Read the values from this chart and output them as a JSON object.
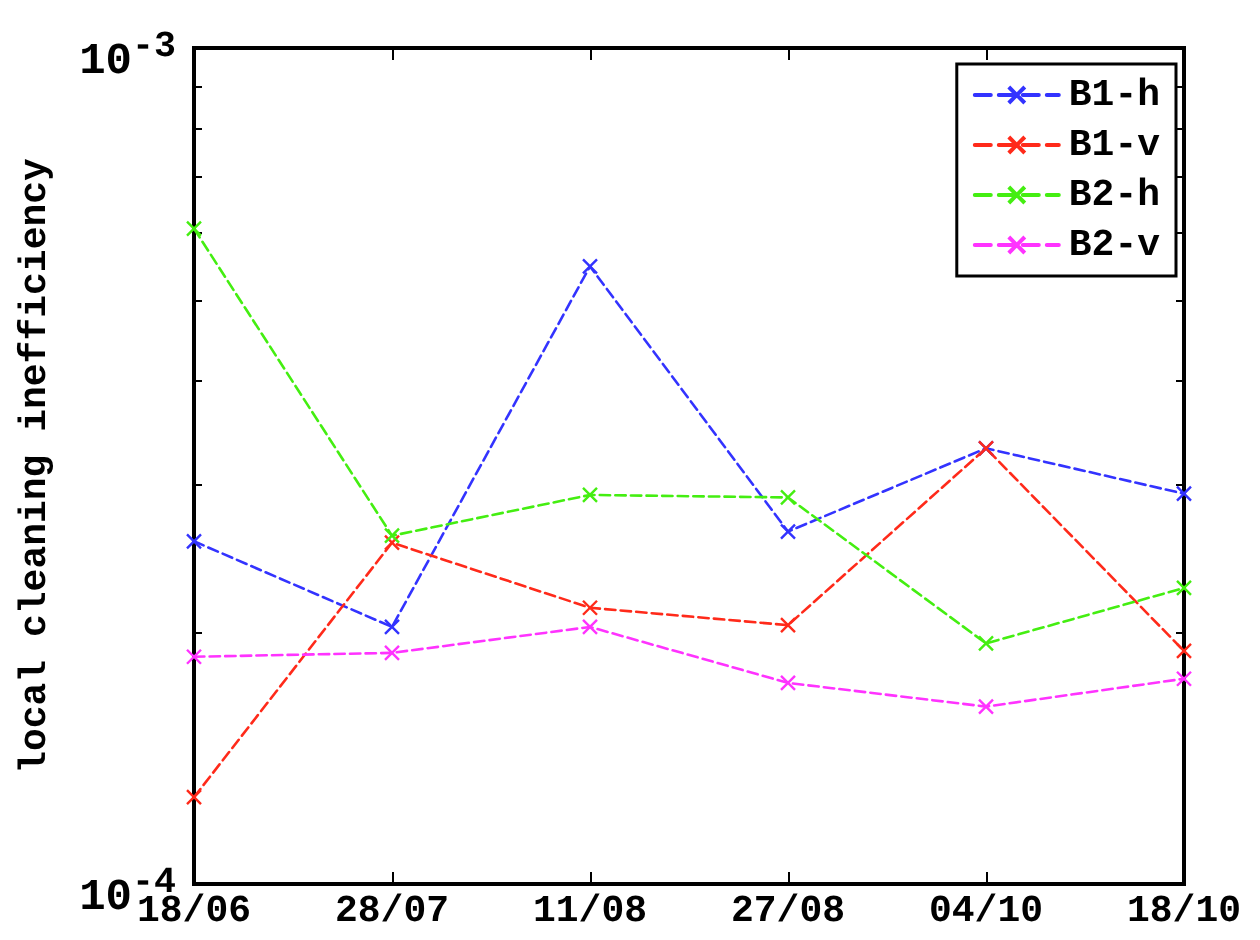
{
  "chart_data": {
    "type": "line",
    "ylabel": "local cleaning inefficiency",
    "categories": [
      "18/06",
      "28/07",
      "11/08",
      "27/08",
      "04/10",
      "18/10"
    ],
    "series": [
      {
        "name": "B1-h",
        "color": "#3333ff",
        "values": [
          0.000257,
          0.000203,
          0.000548,
          0.000264,
          0.000332,
          0.000293
        ]
      },
      {
        "name": "B1-v",
        "color": "#ff2a1a",
        "values": [
          0.000127,
          0.000256,
          0.000214,
          0.000204,
          0.000332,
          0.00019
        ]
      },
      {
        "name": "B2-h",
        "color": "#44ee11",
        "values": [
          0.000608,
          0.000261,
          0.000292,
          0.00029,
          0.000194,
          0.000226
        ]
      },
      {
        "name": "B2-v",
        "color": "#ff33ff",
        "values": [
          0.000187,
          0.000189,
          0.000203,
          0.000174,
          0.000163,
          0.000176
        ]
      }
    ],
    "log": "y",
    "ylim": [
      0.0001,
      0.001
    ],
    "yticks": [
      {
        "value": 0.0001,
        "label": "10$^{-4}$"
      },
      {
        "value": 0.0002,
        "label": null
      },
      {
        "value": 0.0003,
        "label": null
      },
      {
        "value": 0.0004,
        "label": null
      },
      {
        "value": 0.0005,
        "label": null
      },
      {
        "value": 0.0006,
        "label": null
      },
      {
        "value": 0.0007,
        "label": null
      },
      {
        "value": 0.0008,
        "label": null
      },
      {
        "value": 0.0009,
        "label": null
      },
      {
        "value": 0.001,
        "label": "10$^{-3}$"
      }
    ],
    "grid": false,
    "legend": "top right",
    "marker": "cross",
    "line_style": "dashed"
  }
}
